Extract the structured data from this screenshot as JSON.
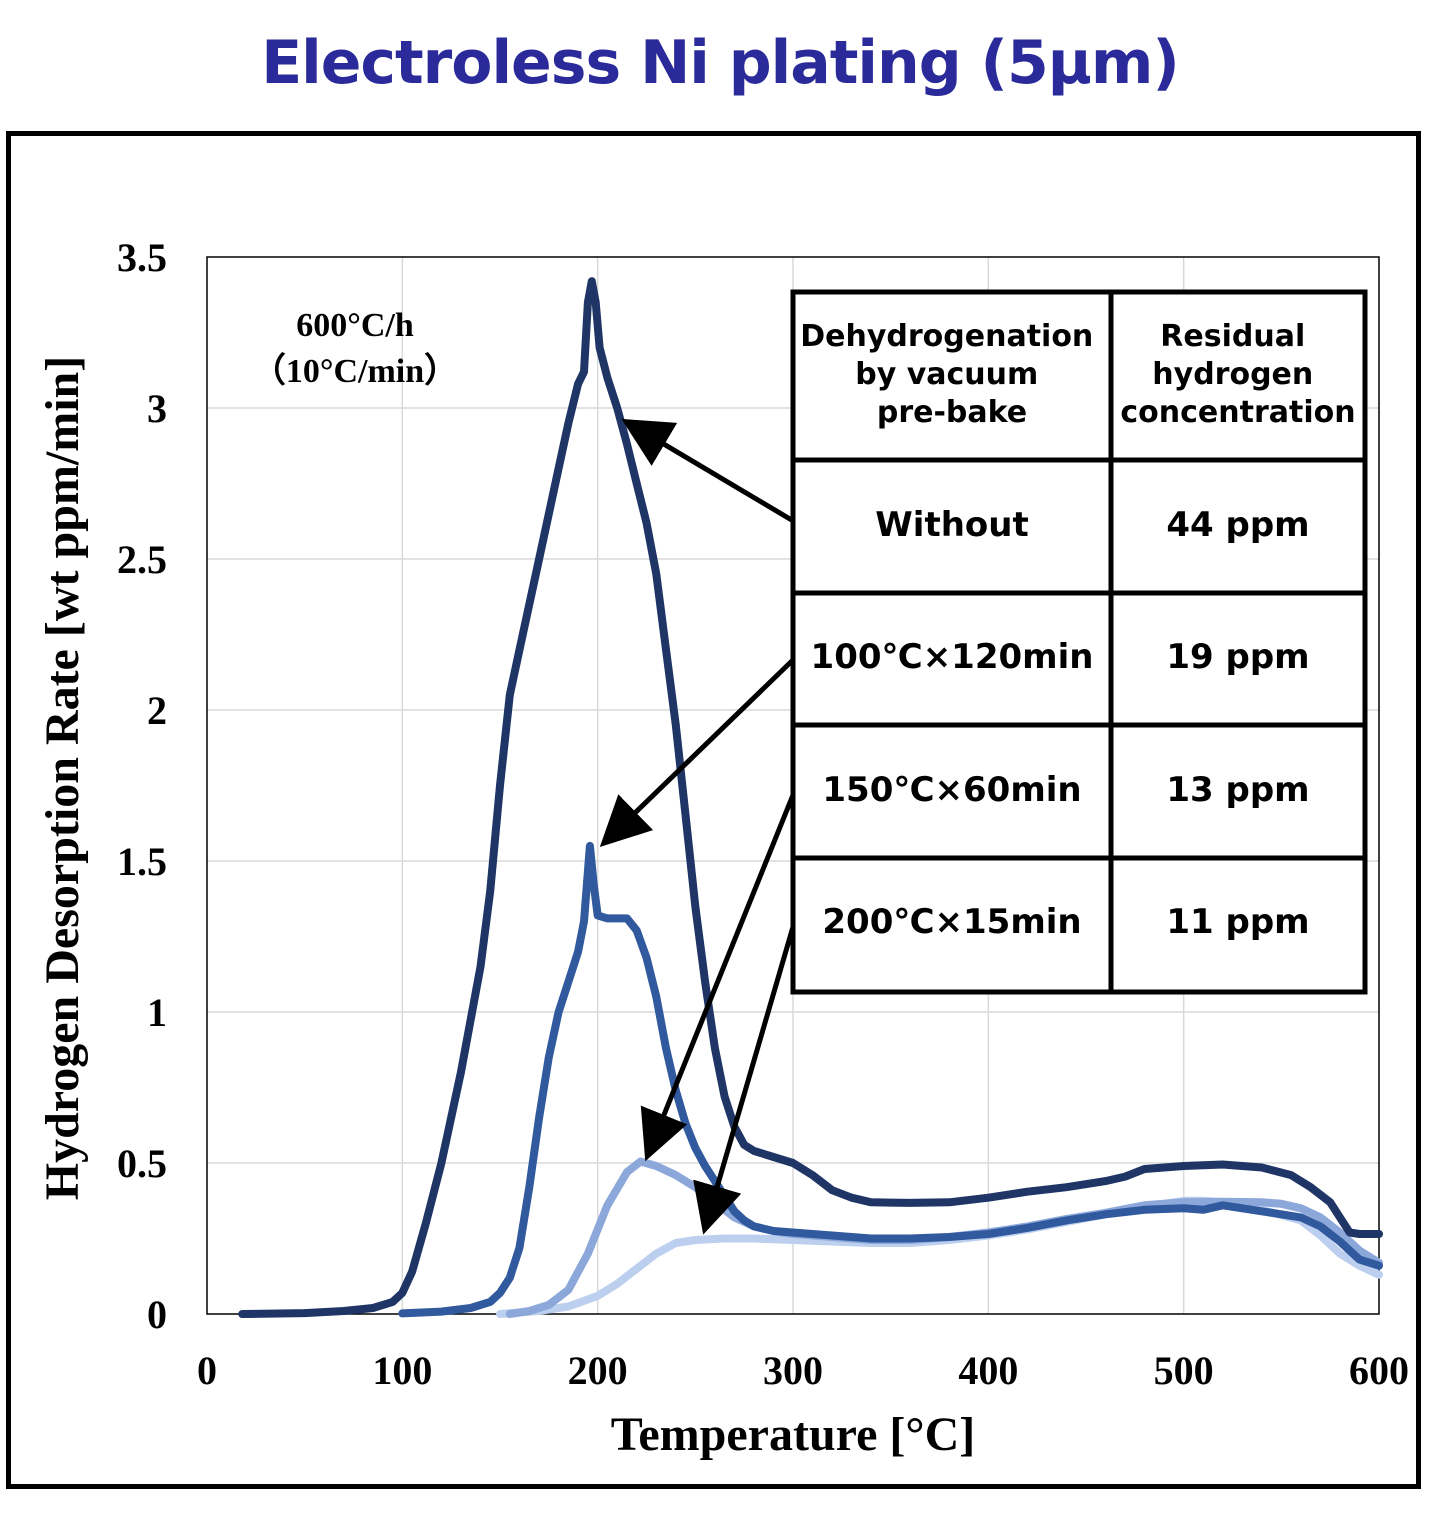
{
  "title": "Electroless Ni plating (5μm)",
  "note": {
    "line1": "600°C/h",
    "line2": "（10°C/min）"
  },
  "table": {
    "headers": [
      "Dehydrogenation by vacuum pre-bake",
      "Residual hydrogen concentration"
    ],
    "rows": [
      {
        "condition": "Without",
        "residual": "44 ppm"
      },
      {
        "condition": "100℃×120min",
        "residual": "19 ppm"
      },
      {
        "condition": "150℃×60min",
        "residual": "13 ppm"
      },
      {
        "condition": "200℃×15min",
        "residual": "11 ppm"
      }
    ]
  },
  "chart_data": {
    "type": "line",
    "title": "Electroless Ni plating (5μm)",
    "xlabel": "Temperature [°C]",
    "ylabel": "Hydrogen Desorption Rate [wt ppm/min]",
    "xlim": [
      0,
      600
    ],
    "ylim": [
      0,
      3.5
    ],
    "xticks": [
      0,
      100,
      200,
      300,
      400,
      500,
      600
    ],
    "yticks": [
      0,
      0.5,
      1,
      1.5,
      2,
      2.5,
      3,
      3.5
    ],
    "grid": true,
    "legend": "table inside plot, top-right",
    "series": [
      {
        "name": "Without",
        "color": "#1e3566",
        "points": [
          [
            18,
            0
          ],
          [
            50,
            0.003
          ],
          [
            70,
            0.01
          ],
          [
            85,
            0.02
          ],
          [
            95,
            0.04
          ],
          [
            100,
            0.07
          ],
          [
            105,
            0.14
          ],
          [
            112,
            0.3
          ],
          [
            120,
            0.5
          ],
          [
            130,
            0.8
          ],
          [
            140,
            1.15
          ],
          [
            145,
            1.4
          ],
          [
            150,
            1.75
          ],
          [
            155,
            2.05
          ],
          [
            160,
            2.2
          ],
          [
            170,
            2.5
          ],
          [
            180,
            2.8
          ],
          [
            185,
            2.95
          ],
          [
            190,
            3.08
          ],
          [
            193,
            3.12
          ],
          [
            195,
            3.35
          ],
          [
            197,
            3.42
          ],
          [
            199,
            3.35
          ],
          [
            201,
            3.2
          ],
          [
            205,
            3.1
          ],
          [
            210,
            3.0
          ],
          [
            215,
            2.88
          ],
          [
            220,
            2.75
          ],
          [
            225,
            2.62
          ],
          [
            230,
            2.45
          ],
          [
            235,
            2.2
          ],
          [
            240,
            1.95
          ],
          [
            245,
            1.65
          ],
          [
            250,
            1.35
          ],
          [
            255,
            1.1
          ],
          [
            260,
            0.88
          ],
          [
            265,
            0.72
          ],
          [
            270,
            0.62
          ],
          [
            275,
            0.56
          ],
          [
            280,
            0.54
          ],
          [
            290,
            0.52
          ],
          [
            300,
            0.5
          ],
          [
            310,
            0.46
          ],
          [
            320,
            0.41
          ],
          [
            330,
            0.385
          ],
          [
            340,
            0.37
          ],
          [
            360,
            0.368
          ],
          [
            380,
            0.37
          ],
          [
            400,
            0.385
          ],
          [
            420,
            0.405
          ],
          [
            440,
            0.42
          ],
          [
            460,
            0.44
          ],
          [
            470,
            0.455
          ],
          [
            480,
            0.48
          ],
          [
            500,
            0.49
          ],
          [
            520,
            0.495
          ],
          [
            540,
            0.485
          ],
          [
            555,
            0.46
          ],
          [
            565,
            0.42
          ],
          [
            575,
            0.37
          ],
          [
            580,
            0.32
          ],
          [
            585,
            0.27
          ],
          [
            590,
            0.265
          ],
          [
            600,
            0.265
          ]
        ]
      },
      {
        "name": "100℃×120min",
        "color": "#30599e",
        "points": [
          [
            100,
            0.002
          ],
          [
            120,
            0.008
          ],
          [
            135,
            0.02
          ],
          [
            145,
            0.04
          ],
          [
            150,
            0.07
          ],
          [
            155,
            0.12
          ],
          [
            160,
            0.22
          ],
          [
            165,
            0.42
          ],
          [
            170,
            0.65
          ],
          [
            175,
            0.85
          ],
          [
            180,
            1.0
          ],
          [
            185,
            1.1
          ],
          [
            190,
            1.2
          ],
          [
            193,
            1.3
          ],
          [
            196,
            1.55
          ],
          [
            198,
            1.42
          ],
          [
            200,
            1.32
          ],
          [
            205,
            1.31
          ],
          [
            210,
            1.31
          ],
          [
            215,
            1.31
          ],
          [
            220,
            1.27
          ],
          [
            225,
            1.18
          ],
          [
            230,
            1.05
          ],
          [
            235,
            0.88
          ],
          [
            240,
            0.74
          ],
          [
            245,
            0.63
          ],
          [
            250,
            0.55
          ],
          [
            255,
            0.49
          ],
          [
            260,
            0.44
          ],
          [
            265,
            0.39
          ],
          [
            270,
            0.34
          ],
          [
            275,
            0.31
          ],
          [
            280,
            0.29
          ],
          [
            290,
            0.275
          ],
          [
            300,
            0.27
          ],
          [
            320,
            0.26
          ],
          [
            340,
            0.25
          ],
          [
            360,
            0.25
          ],
          [
            380,
            0.255
          ],
          [
            400,
            0.265
          ],
          [
            420,
            0.285
          ],
          [
            440,
            0.31
          ],
          [
            460,
            0.33
          ],
          [
            480,
            0.345
          ],
          [
            500,
            0.35
          ],
          [
            510,
            0.345
          ],
          [
            520,
            0.36
          ],
          [
            530,
            0.35
          ],
          [
            540,
            0.34
          ],
          [
            550,
            0.33
          ],
          [
            560,
            0.32
          ],
          [
            570,
            0.29
          ],
          [
            580,
            0.24
          ],
          [
            590,
            0.18
          ],
          [
            600,
            0.16
          ]
        ]
      },
      {
        "name": "150℃×60min",
        "color": "#8ca8da",
        "points": [
          [
            155,
            0
          ],
          [
            165,
            0.01
          ],
          [
            175,
            0.03
          ],
          [
            185,
            0.08
          ],
          [
            195,
            0.2
          ],
          [
            205,
            0.36
          ],
          [
            215,
            0.47
          ],
          [
            222,
            0.505
          ],
          [
            230,
            0.49
          ],
          [
            240,
            0.46
          ],
          [
            250,
            0.42
          ],
          [
            260,
            0.37
          ],
          [
            270,
            0.32
          ],
          [
            280,
            0.29
          ],
          [
            290,
            0.275
          ],
          [
            300,
            0.265
          ],
          [
            320,
            0.255
          ],
          [
            340,
            0.245
          ],
          [
            360,
            0.245
          ],
          [
            380,
            0.255
          ],
          [
            400,
            0.27
          ],
          [
            420,
            0.29
          ],
          [
            440,
            0.315
          ],
          [
            460,
            0.335
          ],
          [
            480,
            0.36
          ],
          [
            500,
            0.37
          ],
          [
            520,
            0.372
          ],
          [
            540,
            0.37
          ],
          [
            550,
            0.365
          ],
          [
            560,
            0.35
          ],
          [
            570,
            0.32
          ],
          [
            580,
            0.27
          ],
          [
            590,
            0.21
          ],
          [
            600,
            0.17
          ]
        ]
      },
      {
        "name": "200℃×15min",
        "color": "#bccfee",
        "points": [
          [
            150,
            0
          ],
          [
            170,
            0.01
          ],
          [
            185,
            0.025
          ],
          [
            200,
            0.06
          ],
          [
            210,
            0.1
          ],
          [
            220,
            0.15
          ],
          [
            230,
            0.2
          ],
          [
            240,
            0.235
          ],
          [
            250,
            0.245
          ],
          [
            265,
            0.25
          ],
          [
            280,
            0.25
          ],
          [
            300,
            0.245
          ],
          [
            320,
            0.24
          ],
          [
            340,
            0.235
          ],
          [
            360,
            0.235
          ],
          [
            380,
            0.245
          ],
          [
            400,
            0.26
          ],
          [
            420,
            0.28
          ],
          [
            440,
            0.305
          ],
          [
            460,
            0.33
          ],
          [
            480,
            0.355
          ],
          [
            500,
            0.375
          ],
          [
            510,
            0.375
          ],
          [
            520,
            0.37
          ],
          [
            540,
            0.345
          ],
          [
            560,
            0.31
          ],
          [
            570,
            0.26
          ],
          [
            580,
            0.2
          ],
          [
            590,
            0.16
          ],
          [
            600,
            0.13
          ]
        ]
      }
    ]
  }
}
